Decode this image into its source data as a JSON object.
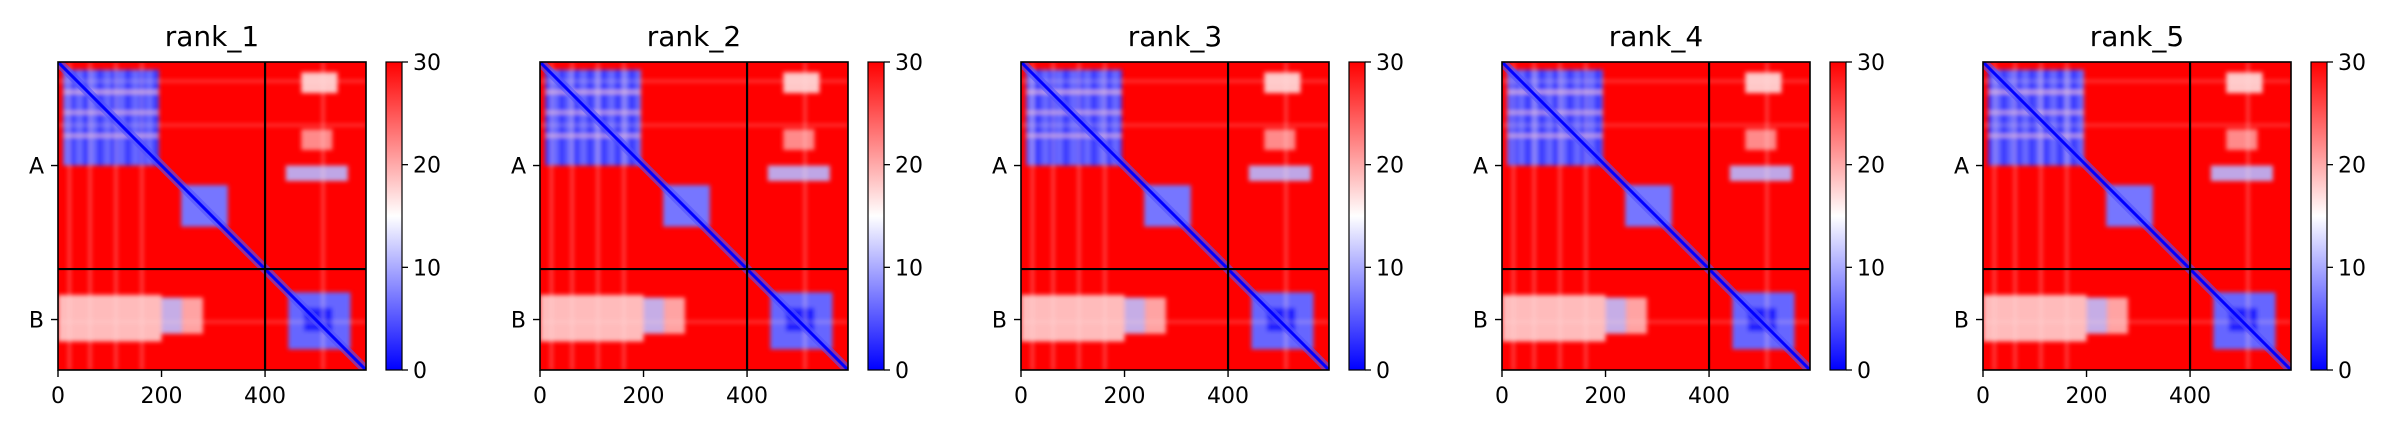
{
  "figure": {
    "colormap": {
      "low": "#0000ff",
      "mid": "#ffffff",
      "high": "#ff0000"
    },
    "divider_color": "#000000"
  },
  "chart_data": [
    {
      "type": "heatmap",
      "title": "rank_1",
      "xlabel": "",
      "ylabel": "",
      "xlim": [
        0,
        595
      ],
      "xticks": [
        "0",
        "200",
        "400"
      ],
      "chain_boundary": 400,
      "yticks": [
        "A",
        "B"
      ],
      "colorbar": {
        "min": 0,
        "max": 30,
        "ticks": [
          "0",
          "10",
          "20",
          "30"
        ]
      }
    },
    {
      "type": "heatmap",
      "title": "rank_2",
      "xlabel": "",
      "ylabel": "",
      "xlim": [
        0,
        595
      ],
      "xticks": [
        "0",
        "200",
        "400"
      ],
      "chain_boundary": 400,
      "yticks": [
        "A",
        "B"
      ],
      "colorbar": {
        "min": 0,
        "max": 30,
        "ticks": [
          "0",
          "10",
          "20",
          "30"
        ]
      }
    },
    {
      "type": "heatmap",
      "title": "rank_3",
      "xlabel": "",
      "ylabel": "",
      "xlim": [
        0,
        595
      ],
      "xticks": [
        "0",
        "200",
        "400"
      ],
      "chain_boundary": 400,
      "yticks": [
        "A",
        "B"
      ],
      "colorbar": {
        "min": 0,
        "max": 30,
        "ticks": [
          "0",
          "10",
          "20",
          "30"
        ]
      }
    },
    {
      "type": "heatmap",
      "title": "rank_4",
      "xlabel": "",
      "ylabel": "",
      "xlim": [
        0,
        595
      ],
      "xticks": [
        "0",
        "200",
        "400"
      ],
      "chain_boundary": 400,
      "yticks": [
        "A",
        "B"
      ],
      "colorbar": {
        "min": 0,
        "max": 30,
        "ticks": [
          "0",
          "10",
          "20",
          "30"
        ]
      }
    },
    {
      "type": "heatmap",
      "title": "rank_5",
      "xlabel": "",
      "ylabel": "",
      "xlim": [
        0,
        595
      ],
      "xticks": [
        "0",
        "200",
        "400"
      ],
      "chain_boundary": 400,
      "yticks": [
        "A",
        "B"
      ],
      "colorbar": {
        "min": 0,
        "max": 30,
        "ticks": [
          "0",
          "10",
          "20",
          "30"
        ]
      }
    }
  ]
}
